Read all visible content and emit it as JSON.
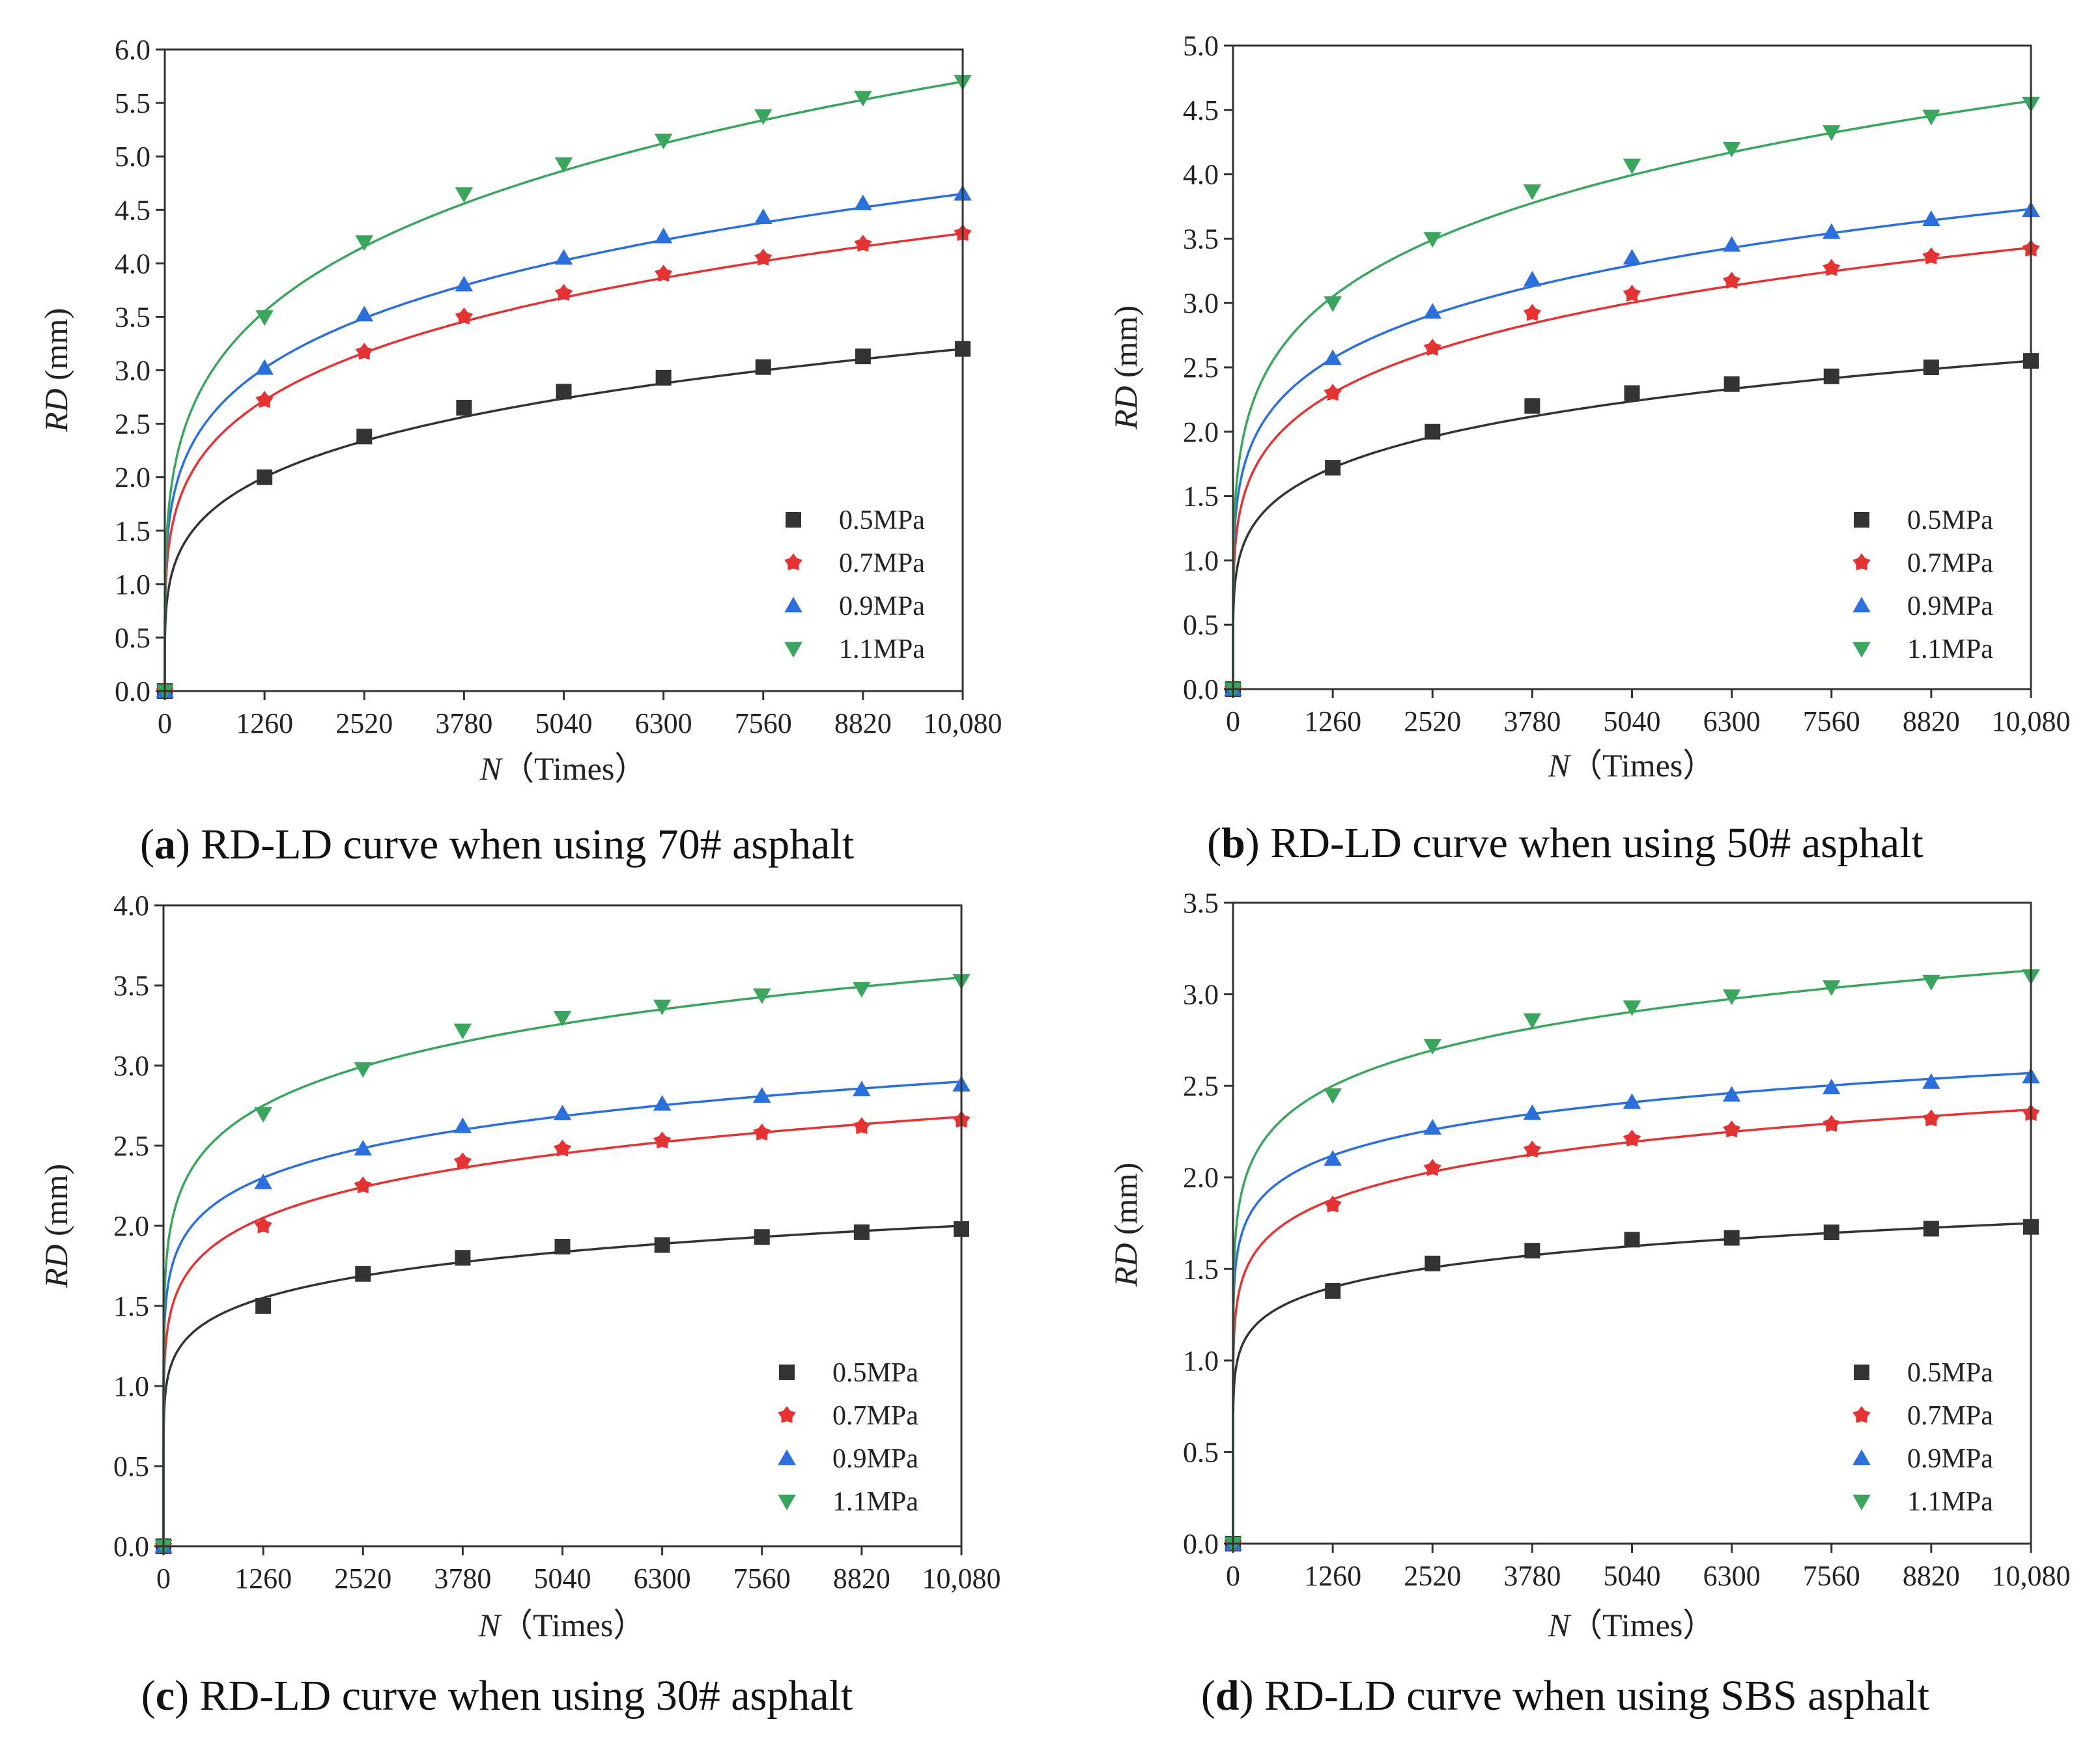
{
  "legend": [
    "0.5MPa",
    "0.7MPa",
    "0.9MPa",
    "1.1MPa"
  ],
  "colors": [
    "#333333",
    "#e53333",
    "#2a6fdc",
    "#3aa55c"
  ],
  "markers": [
    "square",
    "star",
    "triangle-up",
    "triangle-down"
  ],
  "chart_data": [
    {
      "type": "scatter",
      "panel": "a",
      "caption_tag": "a",
      "caption_text": ") RD-LD curve when using 70# asphalt",
      "xlabel_italic": "N",
      "xlabel_rest": "（Times）",
      "ylabel_italic": "RD",
      "ylabel_rest": " (mm)",
      "xticks": [
        "0",
        "1260",
        "2520",
        "3780",
        "5040",
        "6300",
        "7560",
        "8820",
        "10,080"
      ],
      "yticks": [
        "0.0",
        "0.5",
        "1.0",
        "1.5",
        "2.0",
        "2.5",
        "3.0",
        "3.5",
        "4.0",
        "4.5",
        "5.0",
        "5.5",
        "6.0"
      ],
      "xlim": [
        0,
        10080
      ],
      "ylim": [
        0,
        6.0
      ],
      "x": [
        0,
        1260,
        2520,
        3780,
        5040,
        6300,
        7560,
        8820,
        10080
      ],
      "series": [
        {
          "name": "0.5MPa",
          "values": [
            0,
            2.0,
            2.38,
            2.65,
            2.8,
            2.93,
            3.03,
            3.13,
            3.2
          ],
          "fit": [
            2.0,
            3.2
          ]
        },
        {
          "name": "0.7MPa",
          "values": [
            0,
            2.72,
            3.17,
            3.5,
            3.72,
            3.9,
            4.05,
            4.18,
            4.28
          ],
          "fit": [
            2.72,
            4.28
          ]
        },
        {
          "name": "0.9MPa",
          "values": [
            0,
            3.02,
            3.52,
            3.8,
            4.05,
            4.25,
            4.43,
            4.56,
            4.65
          ],
          "fit": [
            3.02,
            4.65
          ]
        },
        {
          "name": "1.1MPa",
          "values": [
            0,
            3.5,
            4.2,
            4.65,
            4.93,
            5.15,
            5.38,
            5.55,
            5.7
          ],
          "fit": [
            3.55,
            5.7
          ]
        }
      ]
    },
    {
      "type": "scatter",
      "panel": "b",
      "caption_tag": "b",
      "caption_text": ") RD-LD curve when using 50# asphalt",
      "xlabel_italic": "N",
      "xlabel_rest": "（Times）",
      "ylabel_italic": "RD",
      "ylabel_rest": " (mm)",
      "xticks": [
        "0",
        "1260",
        "2520",
        "3780",
        "5040",
        "6300",
        "7560",
        "8820",
        "10,080"
      ],
      "yticks": [
        "0.0",
        "0.5",
        "1.0",
        "1.5",
        "2.0",
        "2.5",
        "3.0",
        "3.5",
        "4.0",
        "4.5",
        "5.0"
      ],
      "xlim": [
        0,
        10080
      ],
      "ylim": [
        0,
        5.0
      ],
      "x": [
        0,
        1260,
        2520,
        3780,
        5040,
        6300,
        7560,
        8820,
        10080
      ],
      "series": [
        {
          "name": "0.5MPa",
          "values": [
            0,
            1.72,
            2.0,
            2.2,
            2.3,
            2.37,
            2.43,
            2.5,
            2.55
          ],
          "fit": [
            1.72,
            2.55
          ]
        },
        {
          "name": "0.7MPa",
          "values": [
            0,
            2.3,
            2.65,
            2.92,
            3.07,
            3.17,
            3.27,
            3.36,
            3.42
          ],
          "fit": [
            2.3,
            3.43
          ]
        },
        {
          "name": "0.9MPa",
          "values": [
            0,
            2.57,
            2.93,
            3.18,
            3.35,
            3.45,
            3.55,
            3.65,
            3.72
          ],
          "fit": [
            2.57,
            3.73
          ]
        },
        {
          "name": "1.1MPa",
          "values": [
            0,
            3.0,
            3.5,
            3.87,
            4.07,
            4.2,
            4.33,
            4.45,
            4.55
          ],
          "fit": [
            3.05,
            4.57
          ]
        }
      ]
    },
    {
      "type": "scatter",
      "panel": "c",
      "caption_tag": "c",
      "caption_text": ") RD-LD curve when using 30# asphalt",
      "xlabel_italic": "N",
      "xlabel_rest": "（Times）",
      "ylabel_italic": "RD",
      "ylabel_rest": " (mm)",
      "xticks": [
        "0",
        "1260",
        "2520",
        "3780",
        "5040",
        "6300",
        "7560",
        "8820",
        "10,080"
      ],
      "yticks": [
        "0.0",
        "0.5",
        "1.0",
        "1.5",
        "2.0",
        "2.5",
        "3.0",
        "3.5",
        "4.0"
      ],
      "xlim": [
        0,
        10080
      ],
      "ylim": [
        0,
        4.0
      ],
      "x": [
        0,
        1260,
        2520,
        3780,
        5040,
        6300,
        7560,
        8820,
        10080
      ],
      "series": [
        {
          "name": "0.5MPa",
          "values": [
            0,
            1.5,
            1.7,
            1.8,
            1.87,
            1.88,
            1.93,
            1.96,
            1.98
          ],
          "fit": [
            1.55,
            2.0
          ]
        },
        {
          "name": "0.7MPa",
          "values": [
            0,
            2.0,
            2.25,
            2.4,
            2.48,
            2.53,
            2.58,
            2.62,
            2.66
          ],
          "fit": [
            2.05,
            2.68
          ]
        },
        {
          "name": "0.9MPa",
          "values": [
            0,
            2.27,
            2.48,
            2.62,
            2.7,
            2.76,
            2.81,
            2.85,
            2.88
          ],
          "fit": [
            2.3,
            2.9
          ]
        },
        {
          "name": "1.1MPa",
          "values": [
            0,
            2.7,
            2.98,
            3.22,
            3.3,
            3.37,
            3.44,
            3.48,
            3.53
          ],
          "fit": [
            2.75,
            3.55
          ]
        }
      ]
    },
    {
      "type": "scatter",
      "panel": "d",
      "caption_tag": "d",
      "caption_text": ") RD-LD curve when using SBS asphalt",
      "xlabel_italic": "N",
      "xlabel_rest": "（Times）",
      "ylabel_italic": "RD",
      "ylabel_rest": " (mm)",
      "xticks": [
        "0",
        "1260",
        "2520",
        "3780",
        "5040",
        "6300",
        "7560",
        "8820",
        "10,080"
      ],
      "yticks": [
        "0.0",
        "0.5",
        "1.0",
        "1.5",
        "2.0",
        "2.5",
        "3.0",
        "3.5"
      ],
      "xlim": [
        0,
        10080
      ],
      "ylim": [
        0,
        3.5
      ],
      "x": [
        0,
        1260,
        2520,
        3780,
        5040,
        6300,
        7560,
        8820,
        10080
      ],
      "series": [
        {
          "name": "0.5MPa",
          "values": [
            0,
            1.38,
            1.53,
            1.6,
            1.66,
            1.67,
            1.7,
            1.72,
            1.73
          ],
          "fit": [
            1.4,
            1.75
          ]
        },
        {
          "name": "0.7MPa",
          "values": [
            0,
            1.85,
            2.05,
            2.15,
            2.21,
            2.26,
            2.29,
            2.32,
            2.35
          ],
          "fit": [
            1.88,
            2.37
          ]
        },
        {
          "name": "0.9MPa",
          "values": [
            0,
            2.1,
            2.27,
            2.35,
            2.41,
            2.45,
            2.49,
            2.52,
            2.55
          ],
          "fit": [
            2.12,
            2.57
          ]
        },
        {
          "name": "1.1MPa",
          "values": [
            0,
            2.45,
            2.72,
            2.86,
            2.93,
            2.99,
            3.04,
            3.07,
            3.1
          ],
          "fit": [
            2.5,
            3.13
          ]
        }
      ]
    }
  ]
}
